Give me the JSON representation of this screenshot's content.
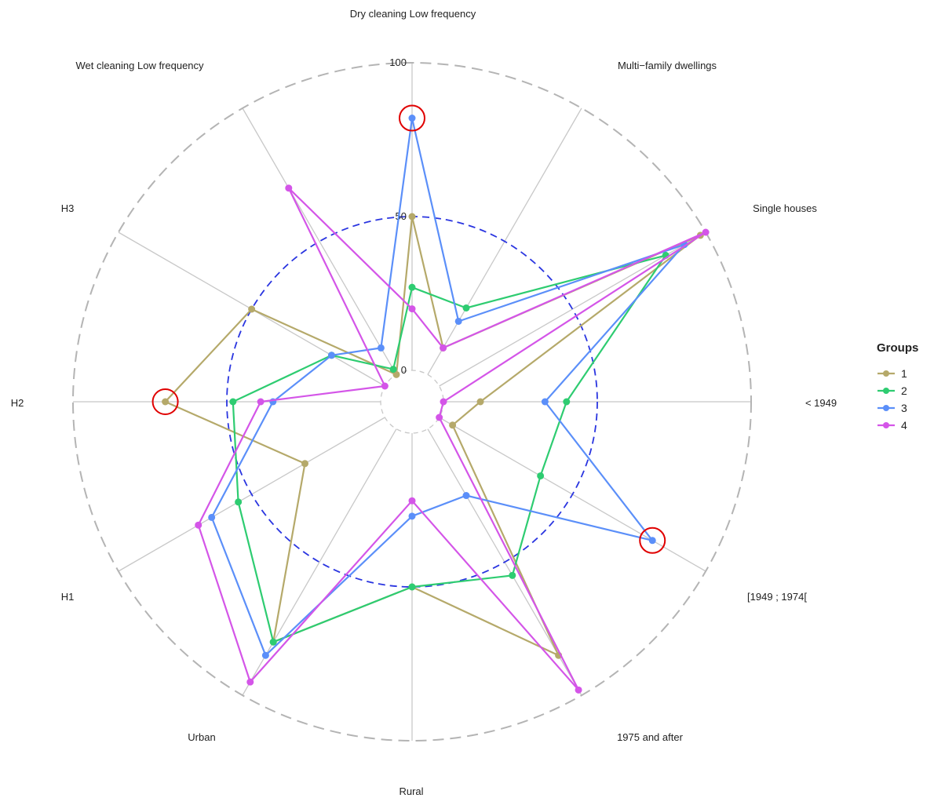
{
  "chart_data": {
    "type": "radar",
    "axes": [
      "Dry cleaning Low frequency",
      "Multi−family dwellings",
      "Single houses",
      "< 1949",
      "[1949 ; 1974[",
      "1975 and after",
      "Rural",
      "Urban",
      "H1",
      "H2",
      "H3",
      "Wet cleaning Low frequency"
    ],
    "rlim": [
      0,
      100
    ],
    "ticks": [
      {
        "value": 0,
        "label": "0"
      },
      {
        "value": 50,
        "label": "50"
      },
      {
        "value": 100,
        "label": "100"
      }
    ],
    "reference_circle": 50,
    "legend": {
      "title": "Groups",
      "position": "right"
    },
    "series": [
      {
        "name": "1",
        "color": "#b5a96a",
        "values": [
          50,
          10,
          98,
          12,
          5,
          85,
          50,
          80,
          30,
          70,
          50,
          0
        ]
      },
      {
        "name": "2",
        "color": "#2ecc71",
        "values": [
          27,
          25,
          85,
          40,
          38,
          55,
          50,
          80,
          55,
          48,
          20,
          2
        ]
      },
      {
        "name": "3",
        "color": "#5b8ff9",
        "values": [
          82,
          20,
          92,
          33,
          80,
          25,
          27,
          85,
          65,
          35,
          20,
          10
        ]
      },
      {
        "name": "4",
        "color": "#d455e8",
        "values": [
          20,
          10,
          100,
          0,
          0,
          98,
          22,
          95,
          70,
          39,
          0,
          70
        ]
      }
    ],
    "highlighted_points": [
      {
        "series": "3",
        "axis": "Dry cleaning Low frequency"
      },
      {
        "series": "3",
        "axis": "[1949 ; 1974["
      },
      {
        "series": "1",
        "axis": "H2"
      }
    ],
    "highlight_color": "#e00000"
  }
}
